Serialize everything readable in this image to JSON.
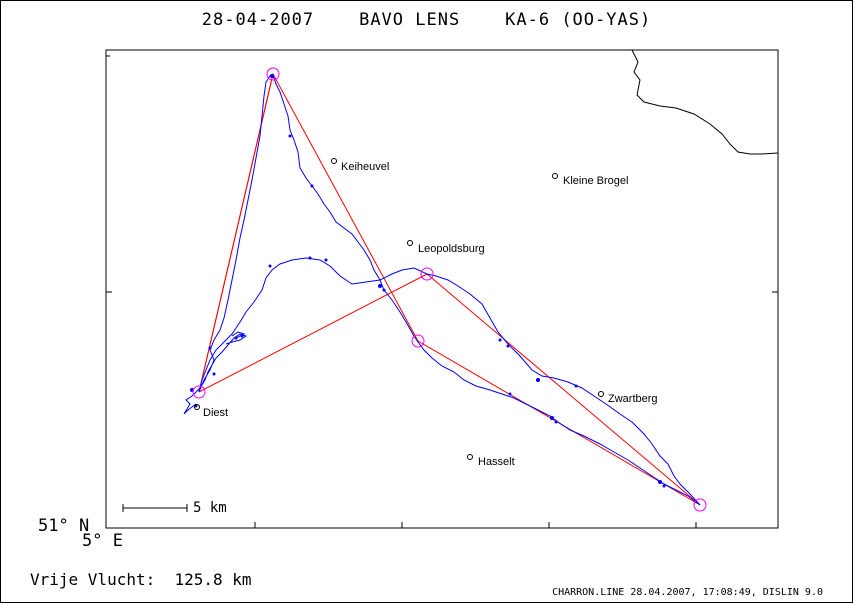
{
  "title": "28-04-2007    BAVO LENS    KA-6 (OO-YAS)",
  "axes": {
    "lat_label": "51° N",
    "lon_label": "5° E"
  },
  "scale_bar": {
    "label": "5 km"
  },
  "distance": {
    "label": "Vrije Vlucht:",
    "value": "125.8 km"
  },
  "footer": "CHARRON.LINE 28.04.2007, 17:08:49, DISLIN 9.0",
  "places": [
    {
      "name": "Keiheuvel",
      "id": "keiheuvel"
    },
    {
      "name": "Kleine Brogel",
      "id": "kleine-brogel"
    },
    {
      "name": "Leopoldsburg",
      "id": "leopoldsburg"
    },
    {
      "name": "Zwartberg",
      "id": "zwartberg"
    },
    {
      "name": "Diest",
      "id": "diest"
    },
    {
      "name": "Hasselt",
      "id": "hasselt"
    }
  ],
  "colors": {
    "track": "#0000ff",
    "task": "#ff0000",
    "turnpoint": "#ff00ff",
    "border": "#000000"
  }
}
